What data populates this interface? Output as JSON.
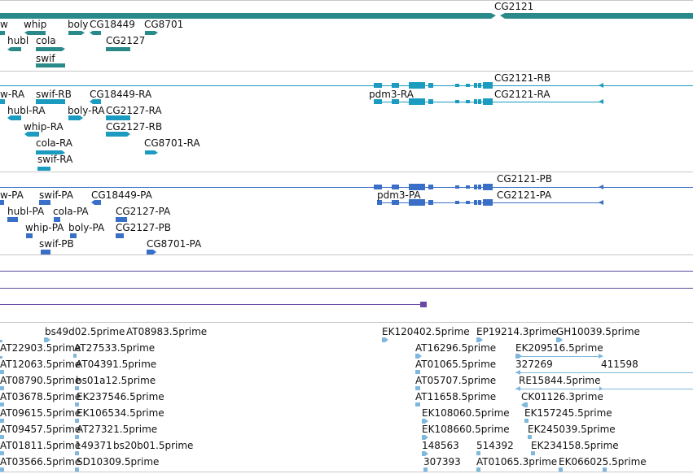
{
  "tracks": [
    {
      "name": "genes",
      "color": "#2a8a8a",
      "labels": [
        "CG2121",
        "w",
        "whip",
        "boly",
        "CG18449",
        "CG8701",
        "hubl",
        "cola",
        "CG2127",
        "swif"
      ]
    },
    {
      "name": "transcripts",
      "color": "#1a9bbf",
      "labels": [
        "CG2121-RB",
        "w-RA",
        "swif-RB",
        "CG18449-RA",
        "pdm3-RA",
        "CG2121-RA",
        "hubl-RA",
        "boly-RA",
        "CG2127-RA",
        "whip-RA",
        "CG2127-RB",
        "cola-RA",
        "CG8701-RA",
        "swif-RA"
      ]
    },
    {
      "name": "proteins",
      "color": "#3a6fc7",
      "labels": [
        "CG2121-PB",
        "w-PA",
        "swif-PA",
        "CG18449-PA",
        "pdm3-PA",
        "CG2121-PA",
        "hubl-PA",
        "cola-PA",
        "CG2127-PA",
        "whip-PA",
        "boly-PA",
        "CG2127-PB",
        "swif-PB",
        "CG8701-PA"
      ]
    },
    {
      "name": "cdna",
      "color": "#80b8dd",
      "labels": [
        "bs49d02.5prime",
        "AT08983.5prime",
        "EK120402.5prime",
        "EP19214.3prime",
        "GH10039.5prime",
        "AT22903.5prime",
        "AT27533.5prime",
        "AT16296.5prime",
        "EK209516.5prime",
        "AT12063.5prime",
        "AT04391.5prime",
        "AT01065.5prime",
        "327269",
        "411598",
        "AT08790.5prime",
        "bs01a12.5prime",
        "AT05707.5prime",
        "RE15844.5prime",
        "AT03678.5prime",
        "EK237546.5prime",
        "AT11658.5prime",
        "CK01126.3prime",
        "AT09615.5prime",
        "EK106534.5prime",
        "EK108060.5prime",
        "EK157245.5prime",
        "AT09457.5prime",
        "AT27321.5prime",
        "EK108660.5prime",
        "EK245039.5prime",
        "AT01811.5prime",
        "149371",
        "bs20b01.5prime",
        "148563",
        "514392",
        "EK234158.5prime",
        "AT03566.5prime",
        "SD10309.5prime",
        "307393",
        "AT01065.3prime",
        "EK066025.5prime"
      ]
    }
  ]
}
